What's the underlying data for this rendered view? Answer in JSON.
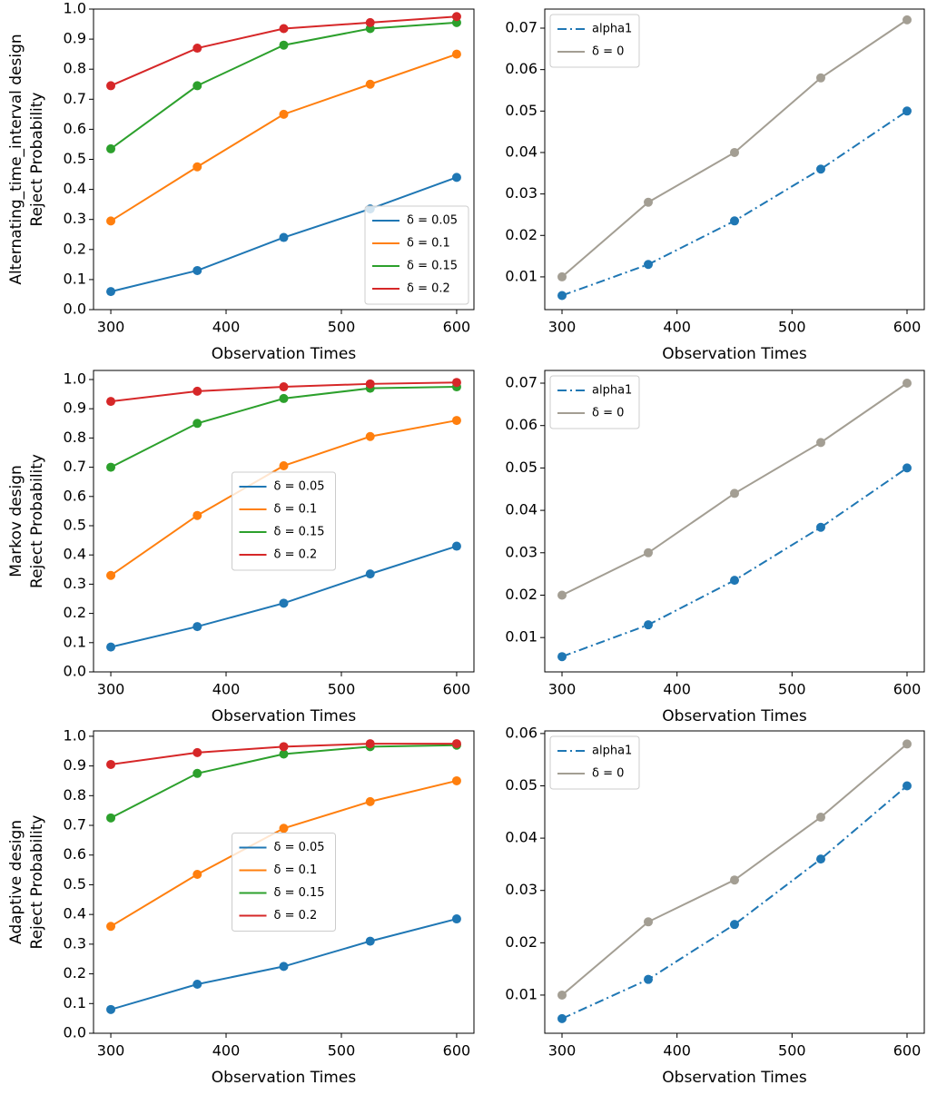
{
  "chart_data": [
    {
      "type": "line",
      "y_label": [
        "Alternating_time_interval design",
        "Reject Probability"
      ],
      "x_label": "Observation Times",
      "x": [
        300,
        375,
        450,
        525,
        600
      ],
      "xlim": [
        285,
        615
      ],
      "xticks": [
        300,
        400,
        500,
        600
      ],
      "ylim": [
        0,
        1.0
      ],
      "yticks": [
        {
          "value": 0,
          "label": "0.0"
        },
        0.1,
        0.2,
        0.3,
        0.4,
        0.5,
        0.6,
        0.7,
        0.8,
        0.9,
        {
          "value": 1,
          "label": "1.0"
        }
      ],
      "legend": "lower right",
      "series": [
        {
          "name": "δ = 0.05",
          "color": "#1f77b4",
          "linestyle": "solid",
          "values": [
            0.06,
            0.13,
            0.24,
            0.335,
            0.44
          ]
        },
        {
          "name": "δ = 0.1",
          "color": "#ff7f0e",
          "linestyle": "solid",
          "values": [
            0.295,
            0.475,
            0.65,
            0.75,
            0.85
          ]
        },
        {
          "name": "δ = 0.15",
          "color": "#2ca02c",
          "linestyle": "solid",
          "values": [
            0.535,
            0.745,
            0.88,
            0.935,
            0.955
          ]
        },
        {
          "name": "δ = 0.2",
          "color": "#d62728",
          "linestyle": "solid",
          "values": [
            0.745,
            0.87,
            0.935,
            0.955,
            0.975
          ]
        }
      ]
    },
    {
      "type": "line",
      "x_label": "Observation Times",
      "x": [
        300,
        375,
        450,
        525,
        600
      ],
      "xlim": [
        285,
        615
      ],
      "xticks": [
        300,
        400,
        500,
        600
      ],
      "ylim": [
        0.0021,
        0.0746
      ],
      "yticks": [
        0.01,
        0.02,
        0.03,
        0.04,
        0.05,
        0.06,
        0.07
      ],
      "legend": "upper left",
      "series": [
        {
          "name": "alpha1",
          "color": "#1f77b4",
          "linestyle": "dashdot",
          "values": [
            0.0055,
            0.013,
            0.0235,
            0.036,
            0.05
          ]
        },
        {
          "name": "δ = 0",
          "color": "#a39e93",
          "linestyle": "solid",
          "values": [
            0.01,
            0.028,
            0.04,
            0.058,
            0.072
          ]
        }
      ]
    },
    {
      "type": "line",
      "y_label": [
        "Markov design",
        "Reject Probability"
      ],
      "x_label": "Observation Times",
      "x": [
        300,
        375,
        450,
        525,
        600
      ],
      "xlim": [
        285,
        615
      ],
      "xticks": [
        300,
        400,
        500,
        600
      ],
      "ylim": [
        0,
        1.031
      ],
      "yticks": [
        {
          "value": 0,
          "label": "0.0"
        },
        0.1,
        0.2,
        0.3,
        0.4,
        0.5,
        0.6,
        0.7,
        0.8,
        0.9,
        {
          "value": 1,
          "label": "1.0"
        }
      ],
      "legend": "center",
      "series": [
        {
          "name": "δ = 0.05",
          "color": "#1f77b4",
          "linestyle": "solid",
          "values": [
            0.085,
            0.155,
            0.235,
            0.335,
            0.43
          ]
        },
        {
          "name": "δ = 0.1",
          "color": "#ff7f0e",
          "linestyle": "solid",
          "values": [
            0.33,
            0.535,
            0.705,
            0.805,
            0.86
          ]
        },
        {
          "name": "δ = 0.15",
          "color": "#2ca02c",
          "linestyle": "solid",
          "values": [
            0.7,
            0.85,
            0.935,
            0.97,
            0.975
          ]
        },
        {
          "name": "δ = 0.2",
          "color": "#d62728",
          "linestyle": "solid",
          "values": [
            0.925,
            0.96,
            0.975,
            0.985,
            0.99
          ]
        }
      ]
    },
    {
      "type": "line",
      "x_label": "Observation Times",
      "x": [
        300,
        375,
        450,
        525,
        600
      ],
      "xlim": [
        285,
        615
      ],
      "xticks": [
        300,
        400,
        500,
        600
      ],
      "ylim": [
        0.0019,
        0.073
      ],
      "yticks": [
        0.01,
        0.02,
        0.03,
        0.04,
        0.05,
        0.06,
        0.07
      ],
      "legend": "upper left",
      "series": [
        {
          "name": "alpha1",
          "color": "#1f77b4",
          "linestyle": "dashdot",
          "values": [
            0.0055,
            0.013,
            0.0235,
            0.036,
            0.05
          ]
        },
        {
          "name": "δ = 0",
          "color": "#a39e93",
          "linestyle": "solid",
          "values": [
            0.02,
            0.03,
            0.044,
            0.056,
            0.07
          ]
        }
      ]
    },
    {
      "type": "line",
      "y_label": [
        "Adaptive design",
        "Reject Probability"
      ],
      "x_label": "Observation Times",
      "x": [
        300,
        375,
        450,
        525,
        600
      ],
      "xlim": [
        285,
        615
      ],
      "xticks": [
        300,
        400,
        500,
        600
      ],
      "ylim": [
        0,
        1.018
      ],
      "yticks": [
        {
          "value": 0,
          "label": "0.0"
        },
        0.1,
        0.2,
        0.3,
        0.4,
        0.5,
        0.6,
        0.7,
        0.8,
        0.9,
        {
          "value": 1,
          "label": "1.0"
        }
      ],
      "legend": "center",
      "series": [
        {
          "name": "δ = 0.05",
          "color": "#1f77b4",
          "linestyle": "solid",
          "values": [
            0.08,
            0.165,
            0.225,
            0.31,
            0.385
          ]
        },
        {
          "name": "δ = 0.1",
          "color": "#ff7f0e",
          "linestyle": "solid",
          "values": [
            0.36,
            0.535,
            0.69,
            0.78,
            0.85
          ]
        },
        {
          "name": "δ = 0.15",
          "color": "#2ca02c",
          "linestyle": "solid",
          "values": [
            0.725,
            0.875,
            0.94,
            0.965,
            0.97
          ]
        },
        {
          "name": "δ = 0.2",
          "color": "#d62728",
          "linestyle": "solid",
          "values": [
            0.905,
            0.945,
            0.965,
            0.975,
            0.975
          ]
        }
      ]
    },
    {
      "type": "line",
      "x_label": "Observation Times",
      "x": [
        300,
        375,
        450,
        525,
        600
      ],
      "xlim": [
        285,
        615
      ],
      "xticks": [
        300,
        400,
        500,
        600
      ],
      "ylim": [
        0.0027,
        0.0605
      ],
      "yticks": [
        0.01,
        0.02,
        0.03,
        0.04,
        0.05,
        0.06
      ],
      "legend": "upper left",
      "series": [
        {
          "name": "alpha1",
          "color": "#1f77b4",
          "linestyle": "dashdot",
          "values": [
            0.0055,
            0.013,
            0.0235,
            0.036,
            0.05
          ]
        },
        {
          "name": "δ = 0",
          "color": "#a39e93",
          "linestyle": "solid",
          "values": [
            0.01,
            0.024,
            0.032,
            0.044,
            0.058
          ]
        }
      ]
    }
  ]
}
